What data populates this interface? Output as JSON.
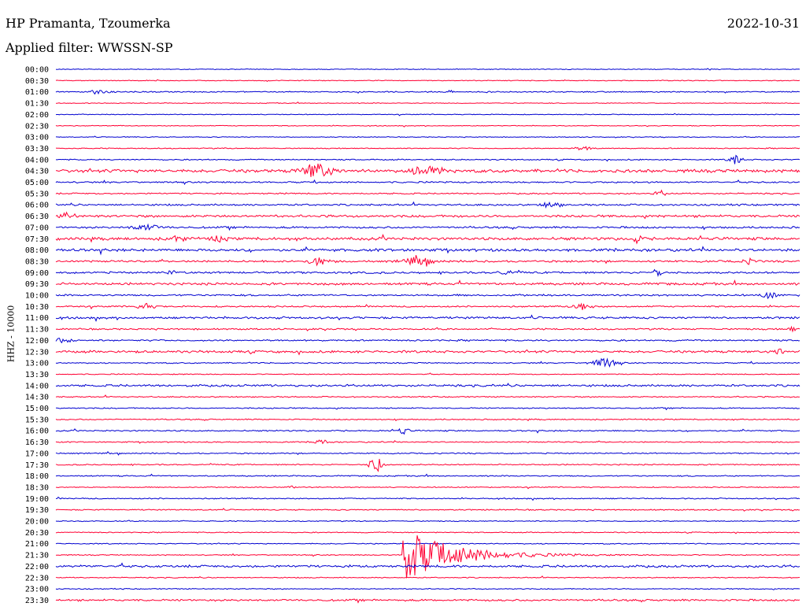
{
  "header": {
    "station": "HP Pramanta, Tzoumerka",
    "filter": "Applied filter: WWSSN-SP",
    "date": "2022-10-31",
    "channel": "HHZ - 10000"
  },
  "colors": {
    "blue": "#0000d0",
    "red": "#ff0033"
  },
  "chart_data": {
    "type": "line",
    "title": "HP Pramanta, Tzoumerka",
    "subtitle": "Applied filter: WWSSN-SP",
    "ylabel": "HHZ - 10000",
    "row_minutes": 30,
    "row_labels": [
      "00:00",
      "00:30",
      "01:00",
      "01:30",
      "02:00",
      "02:30",
      "03:00",
      "03:30",
      "04:00",
      "04:30",
      "05:00",
      "05:30",
      "06:00",
      "06:30",
      "07:00",
      "07:30",
      "08:00",
      "08:30",
      "09:00",
      "09:30",
      "10:00",
      "10:30",
      "11:00",
      "11:30",
      "12:00",
      "12:30",
      "13:00",
      "13:30",
      "14:00",
      "14:30",
      "15:00",
      "15:30",
      "16:00",
      "16:30",
      "17:00",
      "17:30",
      "18:00",
      "18:30",
      "19:00",
      "19:30",
      "20:00",
      "20:30",
      "21:00",
      "21:30",
      "22:00",
      "22:30",
      "23:00",
      "23:30"
    ],
    "series_colors": [
      "blue",
      "red"
    ],
    "noise": [
      0.4,
      0.4,
      0.6,
      0.4,
      0.4,
      0.4,
      0.4,
      0.5,
      0.6,
      1.6,
      0.8,
      0.7,
      0.9,
      1.2,
      1.0,
      1.5,
      1.4,
      1.0,
      1.0,
      1.2,
      0.9,
      0.8,
      1.1,
      0.8,
      0.8,
      1.2,
      0.6,
      0.5,
      1.1,
      0.6,
      0.6,
      0.6,
      0.7,
      0.6,
      0.6,
      0.6,
      0.6,
      0.5,
      0.6,
      0.6,
      0.5,
      0.5,
      0.5,
      0.5,
      1.2,
      0.5,
      0.5,
      1.0
    ],
    "events": [
      {
        "row": 2,
        "minute": 1.8,
        "amp": 2,
        "duration": 0.9
      },
      {
        "row": 2,
        "minute": 15.9,
        "amp": 1.5,
        "duration": 0.3
      },
      {
        "row": 7,
        "minute": 21.3,
        "amp": 2,
        "duration": 0.8
      },
      {
        "row": 8,
        "minute": 27.4,
        "amp": 7,
        "duration": 0.5
      },
      {
        "row": 9,
        "minute": 10.5,
        "amp": 9,
        "duration": 1.2
      },
      {
        "row": 9,
        "minute": 15.0,
        "amp": 7,
        "duration": 1.2
      },
      {
        "row": 11,
        "minute": 24.4,
        "amp": 3,
        "duration": 0.5
      },
      {
        "row": 12,
        "minute": 20.0,
        "amp": 3,
        "duration": 0.8
      },
      {
        "row": 13,
        "minute": 0.5,
        "amp": 4,
        "duration": 0.6
      },
      {
        "row": 14,
        "minute": 3.6,
        "amp": 3,
        "duration": 1.2
      },
      {
        "row": 15,
        "minute": 4.9,
        "amp": 4,
        "duration": 0.5
      },
      {
        "row": 15,
        "minute": 6.6,
        "amp": 4,
        "duration": 0.5
      },
      {
        "row": 15,
        "minute": 23.4,
        "amp": 5,
        "duration": 0.4
      },
      {
        "row": 17,
        "minute": 10.6,
        "amp": 5,
        "duration": 0.8
      },
      {
        "row": 17,
        "minute": 14.6,
        "amp": 5,
        "duration": 1.2
      },
      {
        "row": 17,
        "minute": 28.0,
        "amp": 3,
        "duration": 0.5
      },
      {
        "row": 18,
        "minute": 4.7,
        "amp": 2,
        "duration": 0.5
      },
      {
        "row": 18,
        "minute": 18.2,
        "amp": 2,
        "duration": 0.8
      },
      {
        "row": 18,
        "minute": 24.3,
        "amp": 6,
        "duration": 0.4
      },
      {
        "row": 20,
        "minute": 28.8,
        "amp": 4,
        "duration": 0.6
      },
      {
        "row": 21,
        "minute": 3.6,
        "amp": 3,
        "duration": 0.8
      },
      {
        "row": 21,
        "minute": 21.2,
        "amp": 4,
        "duration": 0.8
      },
      {
        "row": 23,
        "minute": 29.7,
        "amp": 4,
        "duration": 0.3
      },
      {
        "row": 24,
        "minute": 0.3,
        "amp": 3,
        "duration": 0.7
      },
      {
        "row": 25,
        "minute": 29.2,
        "amp": 4,
        "duration": 0.4
      },
      {
        "row": 26,
        "minute": 22.1,
        "amp": 5,
        "duration": 1.0
      },
      {
        "row": 32,
        "minute": 14.0,
        "amp": 5,
        "duration": 0.4
      },
      {
        "row": 33,
        "minute": 10.7,
        "amp": 3,
        "duration": 0.6
      },
      {
        "row": 35,
        "minute": 12.9,
        "amp": 11,
        "duration": 0.5
      },
      {
        "row": 37,
        "minute": 9.5,
        "amp": 1.5,
        "duration": 0.3
      },
      {
        "row": 43,
        "minute": 14.0,
        "amp": 35,
        "duration": 4.5
      }
    ]
  }
}
